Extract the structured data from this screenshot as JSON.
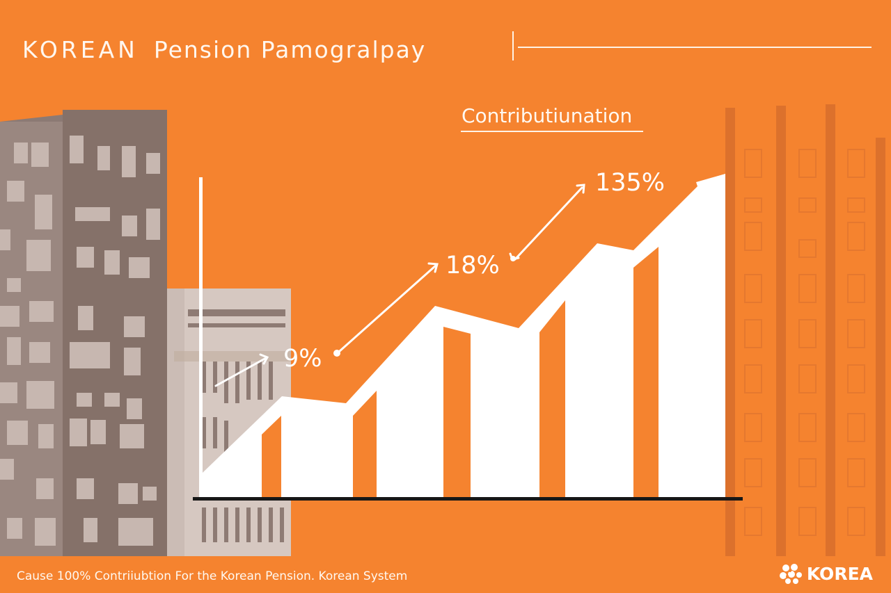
{
  "header": {
    "title_word1": "KOREAN",
    "title_rest": "Pension Pamogralpay"
  },
  "chart": {
    "subtitle": "Contributiunation",
    "labels": [
      "9%",
      "18%",
      "135%"
    ]
  },
  "footer": {
    "caption": "Cause 100% Contriiubtion For the Korean Pension. Korean System",
    "brand": "KOREA"
  },
  "colors": {
    "background": "#f5832f",
    "foreground": "#ffffff",
    "building_dark": "#8f7c75",
    "building_light": "#d8cbc4"
  }
}
